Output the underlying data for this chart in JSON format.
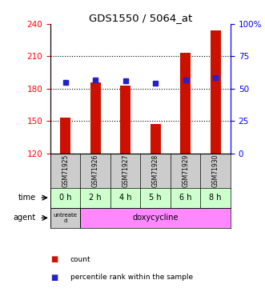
{
  "title": "GDS1550 / 5064_at",
  "samples": [
    "GSM71925",
    "GSM71926",
    "GSM71927",
    "GSM71928",
    "GSM71929",
    "GSM71930"
  ],
  "bar_values": [
    153,
    186,
    183,
    147,
    213,
    234
  ],
  "blue_values": [
    186,
    188,
    187,
    185,
    188,
    190
  ],
  "bar_bottom": 120,
  "ylim_left": [
    120,
    240
  ],
  "ylim_right": [
    0,
    100
  ],
  "yticks_left": [
    120,
    150,
    180,
    210,
    240
  ],
  "yticks_right": [
    0,
    25,
    50,
    75,
    100
  ],
  "time_labels": [
    "0 h",
    "2 h",
    "4 h",
    "5 h",
    "6 h",
    "8 h"
  ],
  "time_bg_color": "#ccffcc",
  "agent_untreated_color": "#cccccc",
  "agent_doxy_color": "#ff88ff",
  "sample_bg_color": "#cccccc",
  "bar_color": "#cc1100",
  "blue_color": "#2222cc",
  "legend_count_color": "#cc1100",
  "legend_pct_color": "#2222cc"
}
